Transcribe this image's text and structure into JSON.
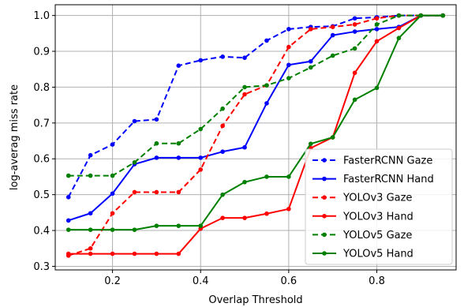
{
  "chart_data": {
    "type": "line",
    "title": "",
    "xlabel": "Overlap Threshold",
    "ylabel": "log-averag miss rate",
    "xlim": [
      0.07,
      0.98
    ],
    "ylim": [
      0.29,
      1.03
    ],
    "xticks": [
      0.2,
      0.4,
      0.6,
      0.8
    ],
    "xtick_labels": [
      "0.2",
      "0.4",
      "0.6",
      "0.8"
    ],
    "yticks": [
      0.3,
      0.4,
      0.5,
      0.6,
      0.7,
      0.8,
      0.9,
      1.0
    ],
    "ytick_labels": [
      "0.3",
      "0.4",
      "0.5",
      "0.6",
      "0.7",
      "0.8",
      "0.9",
      "1.0"
    ],
    "grid": true,
    "legend_position": "bottom-right",
    "x": [
      0.1,
      0.15,
      0.2,
      0.25,
      0.3,
      0.35,
      0.4,
      0.45,
      0.5,
      0.55,
      0.6,
      0.65,
      0.7,
      0.75,
      0.8,
      0.85,
      0.9,
      0.95
    ],
    "series": [
      {
        "name": "FasterRCNN Gaze",
        "color": "#0000ff",
        "dash": true,
        "values": [
          0.493,
          0.61,
          0.64,
          0.705,
          0.71,
          0.86,
          0.875,
          0.885,
          0.882,
          0.93,
          0.962,
          0.968,
          0.97,
          0.992,
          0.995,
          1.0,
          1.0,
          1.0
        ]
      },
      {
        "name": "FasterRCNN Hand",
        "color": "#0000ff",
        "dash": false,
        "values": [
          0.428,
          0.448,
          0.503,
          0.585,
          0.603,
          0.603,
          0.603,
          0.62,
          0.632,
          0.755,
          0.862,
          0.872,
          0.945,
          0.955,
          0.962,
          0.968,
          1.0,
          1.0
        ]
      },
      {
        "name": "YOLOv3 Gaze",
        "color": "#ff0000",
        "dash": true,
        "values": [
          0.33,
          0.35,
          0.448,
          0.507,
          0.507,
          0.507,
          0.57,
          0.692,
          0.78,
          0.805,
          0.912,
          0.962,
          0.968,
          0.975,
          0.992,
          1.0,
          1.0,
          1.0
        ]
      },
      {
        "name": "YOLOv3 Hand",
        "color": "#ff0000",
        "dash": false,
        "values": [
          0.335,
          0.335,
          0.335,
          0.335,
          0.335,
          0.335,
          0.405,
          0.435,
          0.435,
          0.447,
          0.46,
          0.63,
          0.66,
          0.84,
          0.928,
          0.965,
          1.0,
          1.0
        ]
      },
      {
        "name": "YOLOv5 Gaze",
        "color": "#008000",
        "dash": true,
        "values": [
          0.553,
          0.553,
          0.553,
          0.59,
          0.643,
          0.643,
          0.683,
          0.74,
          0.8,
          0.805,
          0.825,
          0.855,
          0.888,
          0.908,
          0.975,
          1.0,
          1.0,
          1.0
        ]
      },
      {
        "name": "YOLOv5 Hand",
        "color": "#008000",
        "dash": false,
        "values": [
          0.402,
          0.402,
          0.402,
          0.402,
          0.413,
          0.413,
          0.413,
          0.5,
          0.535,
          0.55,
          0.55,
          0.642,
          0.66,
          0.765,
          0.798,
          0.937,
          1.0,
          1.0
        ]
      }
    ]
  }
}
